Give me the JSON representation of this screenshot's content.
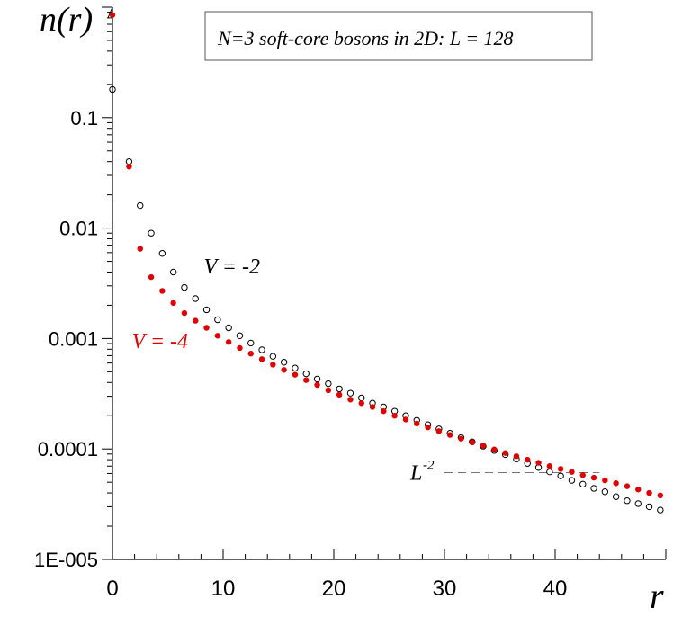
{
  "chart_data": {
    "type": "scatter",
    "title": "N=3 soft-core bosons in 2D:  L = 128",
    "ylabel": "n(r)",
    "xlabel": "r",
    "yscale": "log",
    "xlim": [
      0,
      50
    ],
    "ylim": [
      1e-05,
      1
    ],
    "x_ticks": [
      "0",
      "10",
      "20",
      "30",
      "40"
    ],
    "y_ticks": [
      {
        "value": 0.1,
        "label": "0.1"
      },
      {
        "value": 0.01,
        "label": "0.01"
      },
      {
        "value": 0.001,
        "label": "0.001"
      },
      {
        "value": 0.0001,
        "label": "0.0001"
      },
      {
        "value": 1e-05,
        "label": "1E-005"
      }
    ],
    "grid": false,
    "series": [
      {
        "name": "V = -2",
        "marker": "open-circle",
        "color": "#000000",
        "label_at": [
          8.5,
          0.0045
        ],
        "points": [
          [
            0,
            0.18
          ],
          [
            1.5,
            0.04
          ],
          [
            2.5,
            0.016
          ],
          [
            3.5,
            0.009
          ],
          [
            4.5,
            0.0059
          ],
          [
            5.5,
            0.004
          ],
          [
            6.5,
            0.0029
          ],
          [
            7.5,
            0.0023
          ],
          [
            8.5,
            0.00182
          ],
          [
            9.5,
            0.00148
          ],
          [
            10.5,
            0.00125
          ],
          [
            11.5,
            0.00106
          ],
          [
            12.5,
            0.00091
          ],
          [
            13.5,
            0.00079
          ],
          [
            14.5,
            0.00069
          ],
          [
            15.5,
            0.00061
          ],
          [
            16.5,
            0.00054
          ],
          [
            17.5,
            0.00048
          ],
          [
            18.5,
            0.00043
          ],
          [
            19.5,
            0.00039
          ],
          [
            20.5,
            0.00035
          ],
          [
            21.5,
            0.00032
          ],
          [
            22.5,
            0.00029
          ],
          [
            23.5,
            0.00026
          ],
          [
            24.5,
            0.00024
          ],
          [
            25.5,
            0.00022
          ],
          [
            26.5,
            0.0002
          ],
          [
            27.5,
            0.000182
          ],
          [
            28.5,
            0.000166
          ],
          [
            29.5,
            0.000152
          ],
          [
            30.5,
            0.000139
          ],
          [
            31.5,
            0.000127
          ],
          [
            32.5,
            0.000116
          ],
          [
            33.5,
            0.000106
          ],
          [
            34.5,
            9.7e-05
          ],
          [
            35.5,
            8.9e-05
          ],
          [
            36.5,
            8.1e-05
          ],
          [
            37.5,
            7.4e-05
          ],
          [
            38.5,
            6.8e-05
          ],
          [
            39.5,
            6.2e-05
          ],
          [
            40.5,
            5.7e-05
          ],
          [
            41.5,
            5.2e-05
          ],
          [
            42.5,
            4.8e-05
          ],
          [
            43.5,
            4.4e-05
          ],
          [
            44.5,
            4.1e-05
          ],
          [
            45.5,
            3.7e-05
          ],
          [
            46.5,
            3.4e-05
          ],
          [
            47.5,
            3.2e-05
          ],
          [
            48.5,
            3e-05
          ],
          [
            49.5,
            2.8e-05
          ]
        ]
      },
      {
        "name": "V = -4",
        "marker": "filled-circle",
        "color": "#e00000",
        "label_at": [
          2.0,
          0.00095
        ],
        "points": [
          [
            0,
            0.85
          ],
          [
            1.5,
            0.036
          ],
          [
            2.5,
            0.0065
          ],
          [
            3.5,
            0.0036
          ],
          [
            4.5,
            0.0027
          ],
          [
            5.5,
            0.0021
          ],
          [
            6.5,
            0.0017
          ],
          [
            7.5,
            0.00145
          ],
          [
            8.5,
            0.00125
          ],
          [
            9.5,
            0.00106
          ],
          [
            10.5,
            0.00093
          ],
          [
            11.5,
            0.00082
          ],
          [
            12.5,
            0.00073
          ],
          [
            13.5,
            0.00065
          ],
          [
            14.5,
            0.00058
          ],
          [
            15.5,
            0.00052
          ],
          [
            16.5,
            0.00047
          ],
          [
            17.5,
            0.00042
          ],
          [
            18.5,
            0.00038
          ],
          [
            19.5,
            0.00034
          ],
          [
            20.5,
            0.00031
          ],
          [
            21.5,
            0.00028
          ],
          [
            22.5,
            0.00026
          ],
          [
            23.5,
            0.00024
          ],
          [
            24.5,
            0.00022
          ],
          [
            25.5,
            0.0002
          ],
          [
            26.5,
            0.000185
          ],
          [
            27.5,
            0.00017
          ],
          [
            28.5,
            0.000157
          ],
          [
            29.5,
            0.000145
          ],
          [
            30.5,
            0.000134
          ],
          [
            31.5,
            0.000124
          ],
          [
            32.5,
            0.000115
          ],
          [
            33.5,
            0.000107
          ],
          [
            34.5,
            9.9e-05
          ],
          [
            35.5,
            9.2e-05
          ],
          [
            36.5,
            8.6e-05
          ],
          [
            37.5,
            8e-05
          ],
          [
            38.5,
            7.5e-05
          ],
          [
            39.5,
            7e-05
          ],
          [
            40.5,
            6.6e-05
          ],
          [
            41.5,
            6.2e-05
          ],
          [
            42.5,
            5.8e-05
          ],
          [
            43.5,
            5.5e-05
          ],
          [
            44.5,
            5.2e-05
          ],
          [
            45.5,
            4.9e-05
          ],
          [
            46.5,
            4.6e-05
          ],
          [
            47.5,
            4.3e-05
          ],
          [
            48.5,
            4e-05
          ],
          [
            49.5,
            3.8e-05
          ]
        ]
      }
    ],
    "reference_line": {
      "label_base": "L",
      "label_exp": "-2",
      "value": 6.1e-05,
      "x_range": [
        30,
        44
      ]
    }
  }
}
